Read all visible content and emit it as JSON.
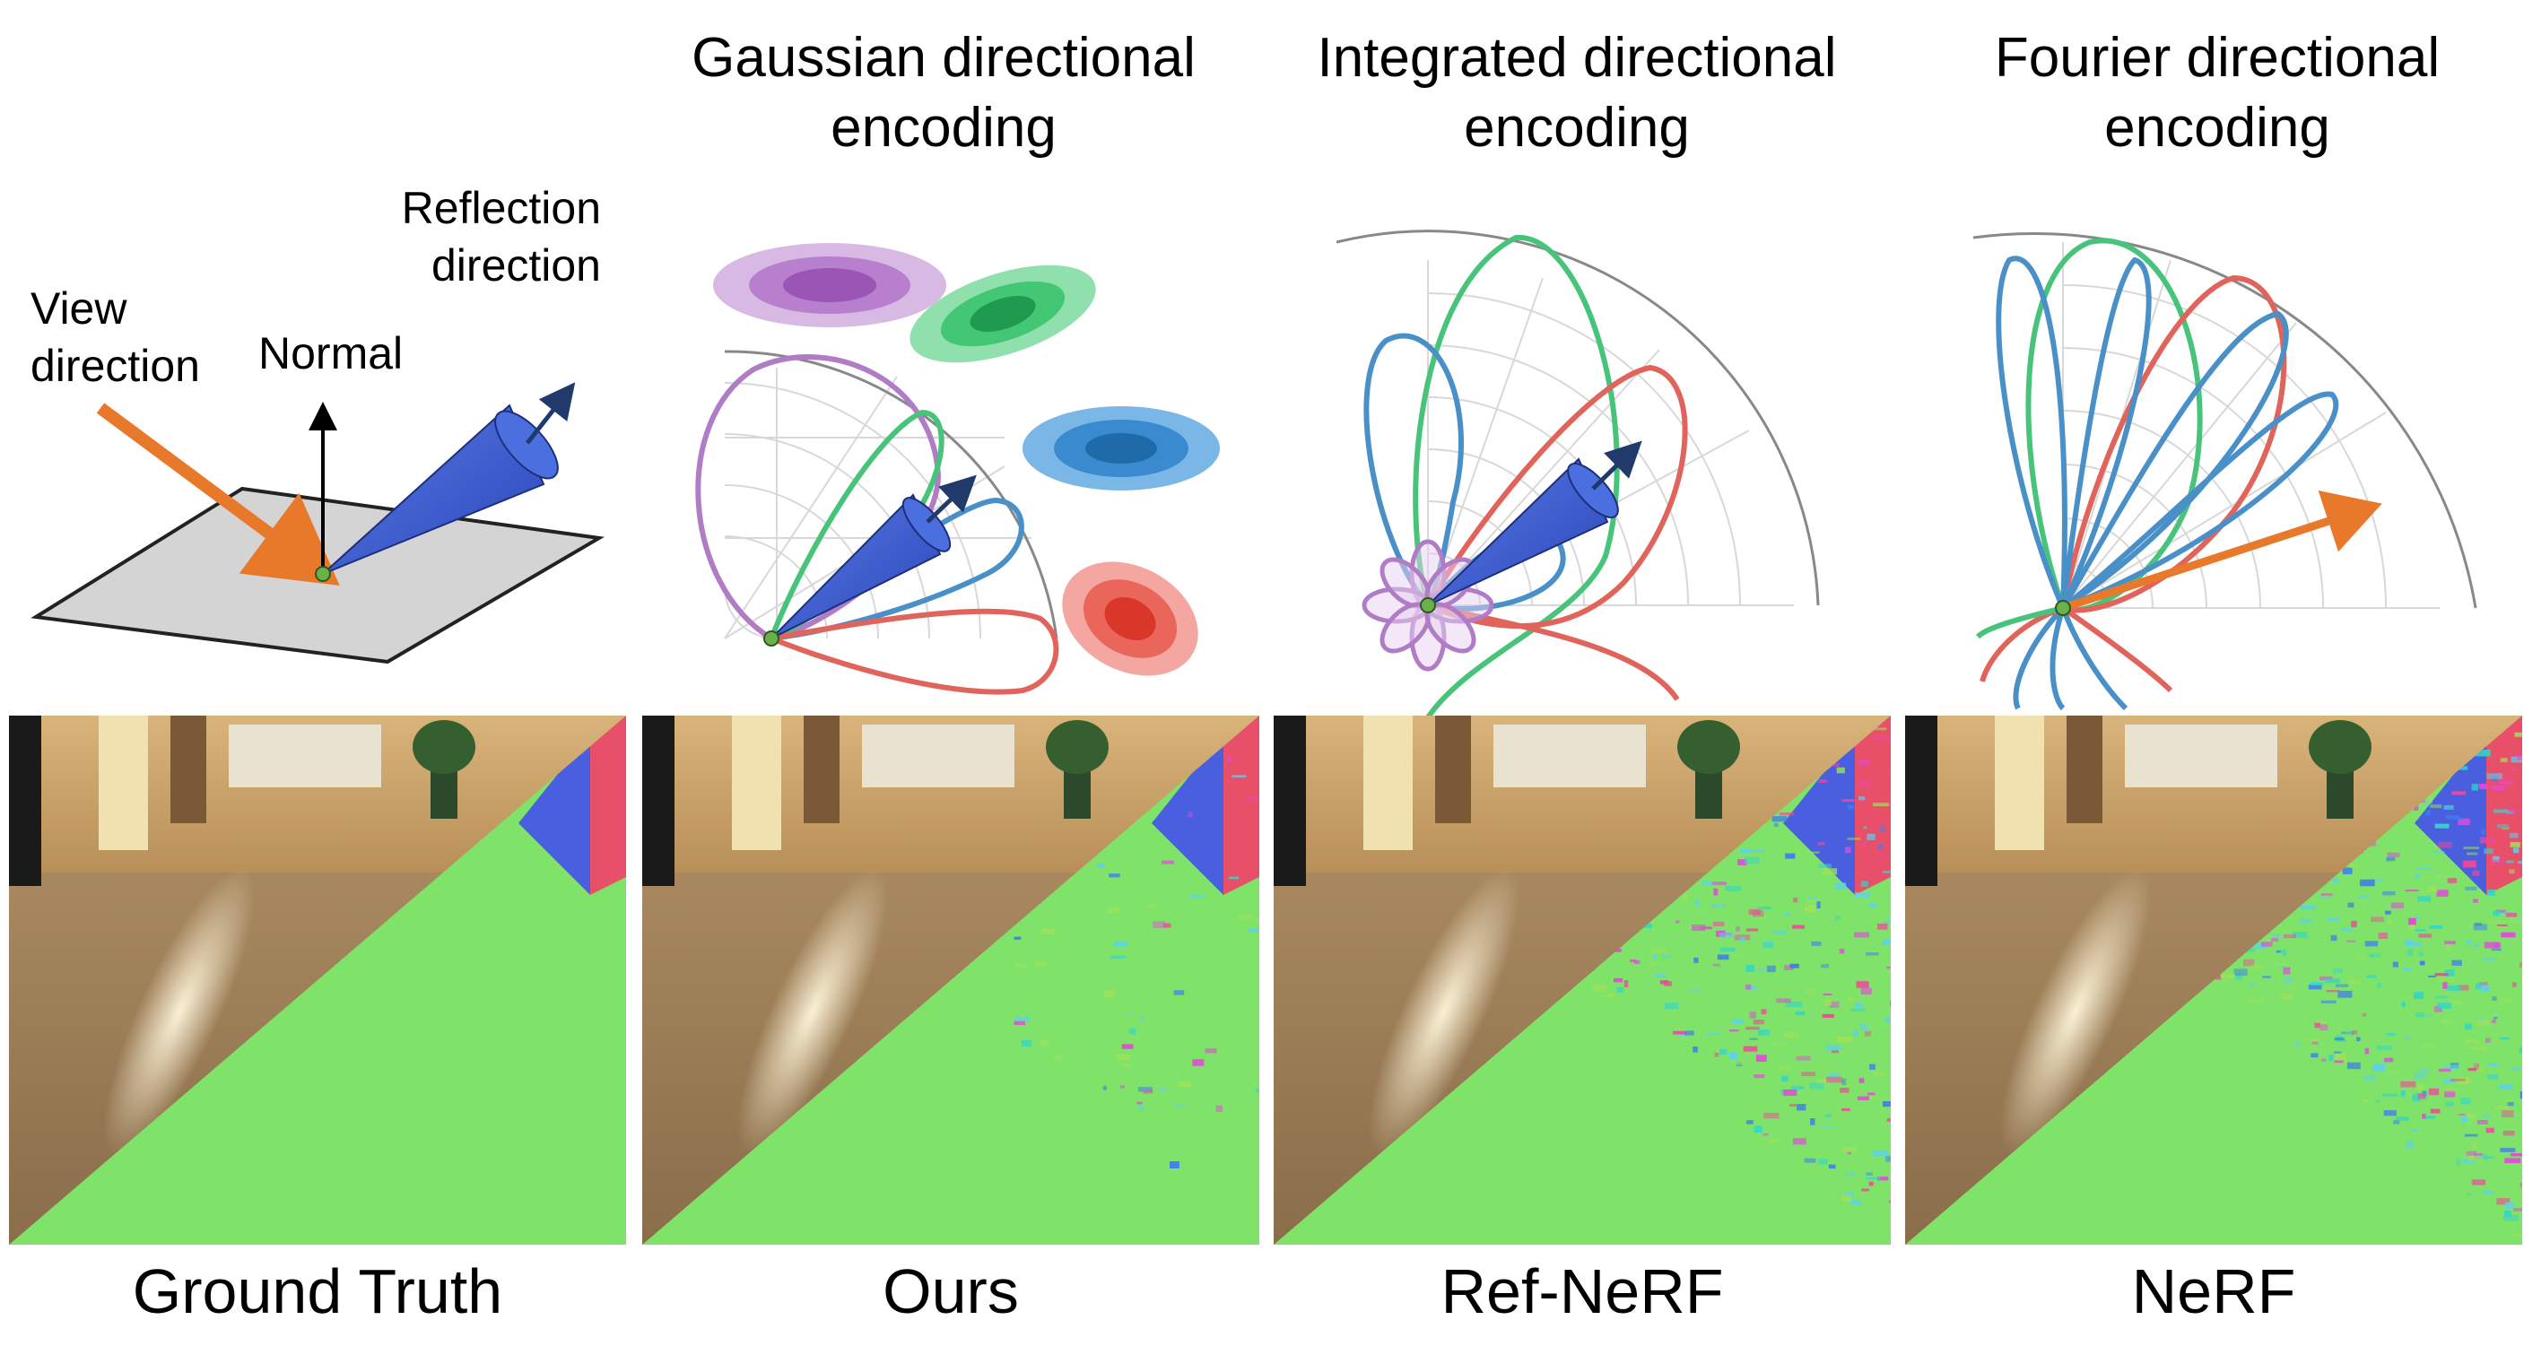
{
  "titles": {
    "gaussian": "Gaussian directional encoding",
    "integrated": "Integrated directional encoding",
    "fourier": "Fourier directional encoding"
  },
  "diagram_labels": {
    "view": "View direction",
    "normal": "Normal",
    "reflection": "Reflection direction"
  },
  "captions": [
    "Ground Truth",
    "Ours",
    "Ref-NeRF",
    "NeRF"
  ],
  "colors": {
    "view_arrow": "#e8782a",
    "cone": "#3a5bd6",
    "plane": "#d4d4d4",
    "purple": "#b07cc6",
    "green": "#48c47a",
    "blue": "#4a90c8",
    "red": "#e0645c",
    "normal_map_green": "#7fe36a"
  },
  "panel_normal_noise": [
    0,
    0.12,
    0.55,
    0.85
  ]
}
